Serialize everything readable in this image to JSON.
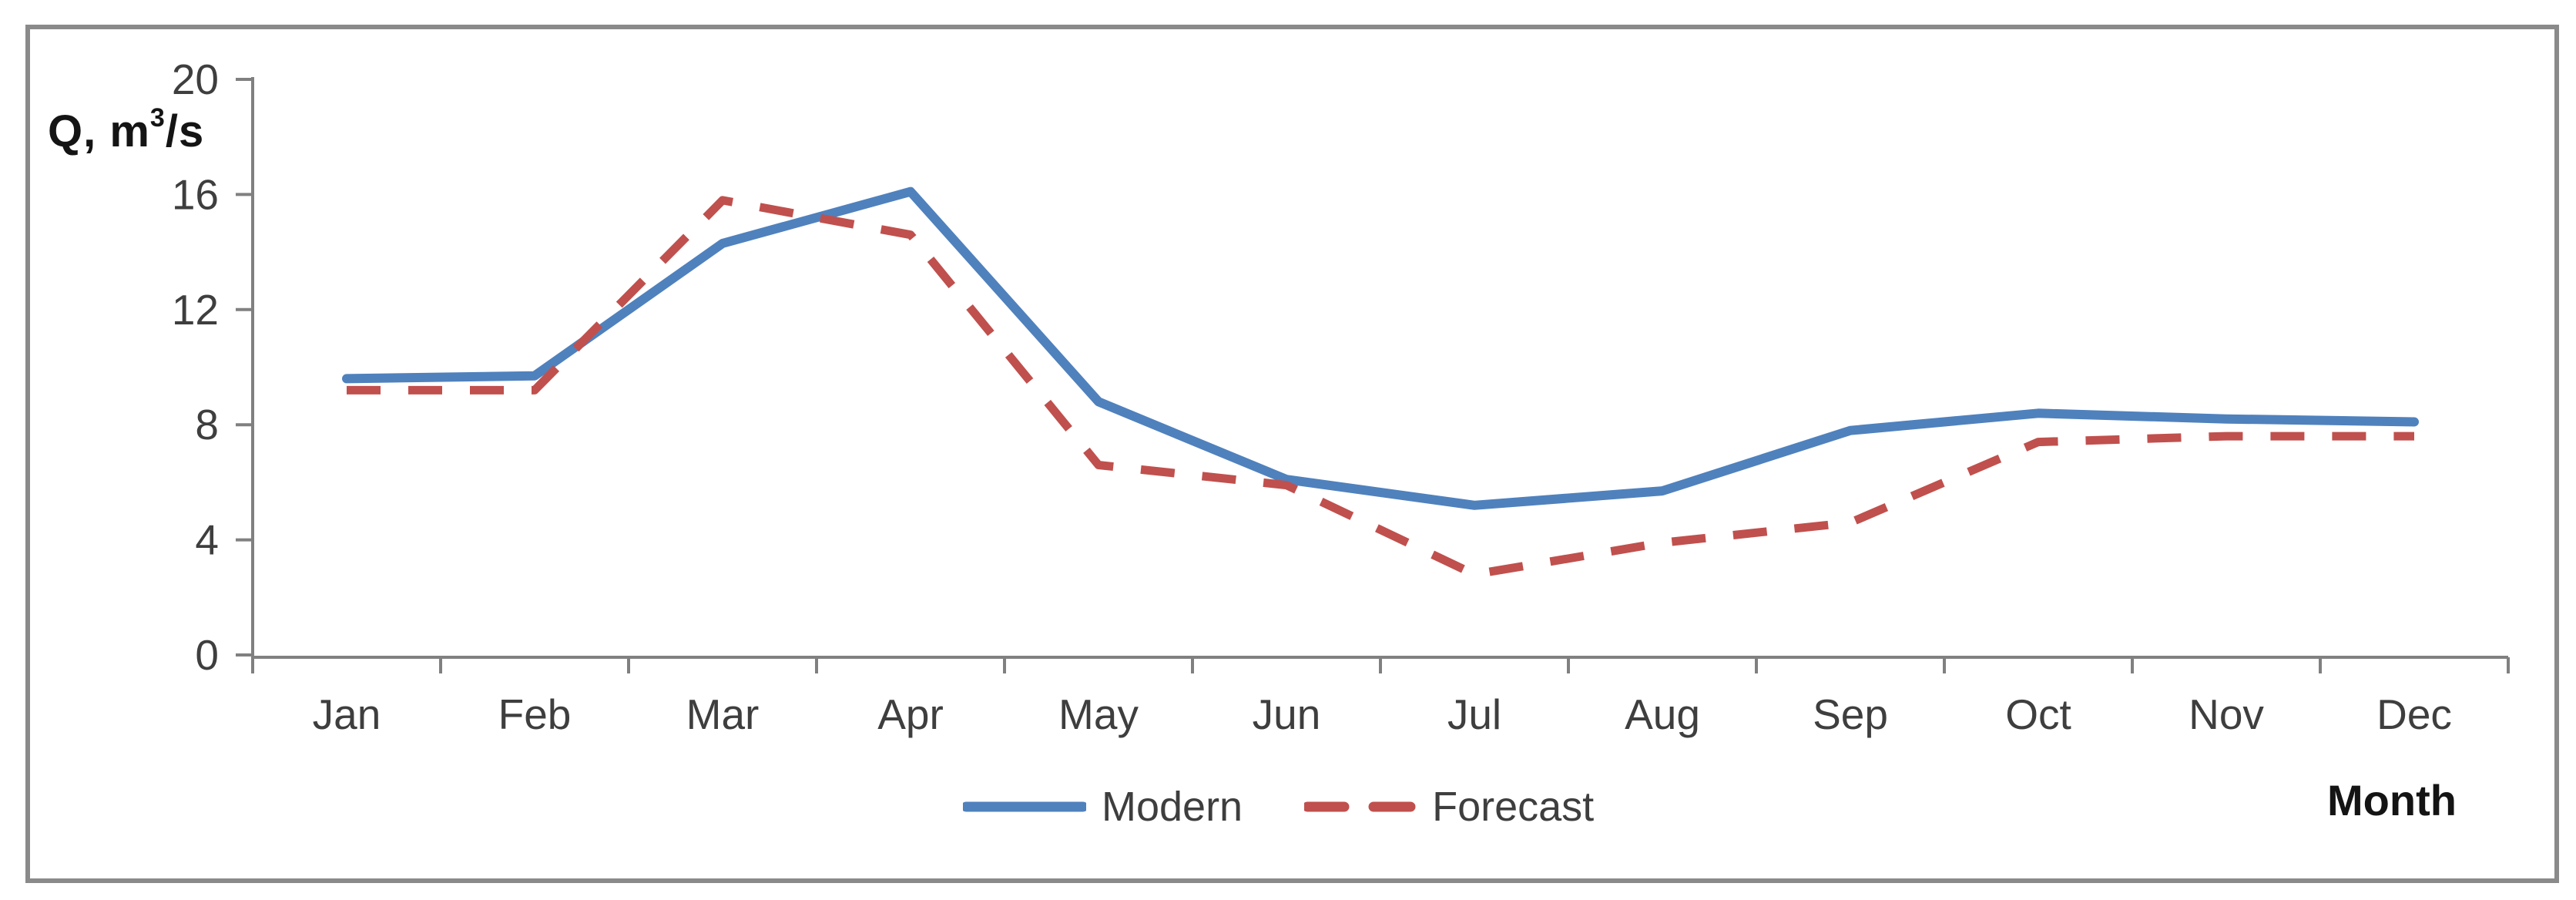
{
  "chart_data": {
    "type": "line",
    "categories": [
      "Jan",
      "Feb",
      "Mar",
      "Apr",
      "May",
      "Jun",
      "Jul",
      "Aug",
      "Sep",
      "Oct",
      "Nov",
      "Dec"
    ],
    "series": [
      {
        "name": "Modern",
        "color": "#4F81BD",
        "style": "solid",
        "values": [
          9.6,
          9.7,
          14.3,
          16.1,
          8.8,
          6.1,
          5.2,
          5.7,
          7.8,
          8.4,
          8.2,
          8.1
        ]
      },
      {
        "name": "Forecast",
        "color": "#C0504D",
        "style": "dashed",
        "values": [
          9.2,
          9.2,
          15.8,
          14.6,
          6.6,
          5.9,
          2.8,
          3.9,
          4.6,
          7.4,
          7.6,
          7.6
        ]
      }
    ],
    "y_axis": {
      "min": 0,
      "max": 20,
      "tick_step": 4,
      "tick_labels": [
        "0",
        "4",
        "8",
        "12",
        "16",
        "20"
      ]
    },
    "y_axis_title": {
      "prefix": "Q, m",
      "sup": "3",
      "suffix": "/s"
    },
    "x_axis_title": "Month",
    "legend_position": "bottom-center",
    "grid": "off",
    "colors": {
      "axis": "#808080",
      "frame_border": "#8A8A8A",
      "tick_text": "#3E3E3E",
      "title_text": "#141414"
    }
  }
}
